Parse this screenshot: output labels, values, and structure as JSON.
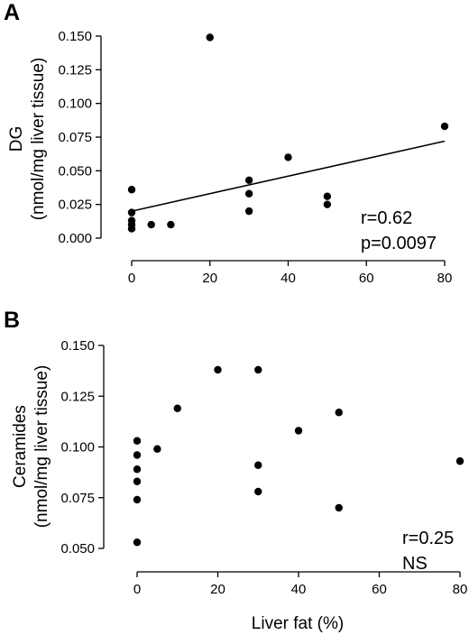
{
  "chart_data": [
    {
      "type": "scatter",
      "panel": "A",
      "title": "",
      "ylabel": "DG",
      "ylabel_line2": "(nmol/mg liver tissue)",
      "xlabel": "",
      "xlim": [
        0,
        80
      ],
      "ylim": [
        0,
        0.15
      ],
      "xticks": [
        0,
        20,
        40,
        60,
        80
      ],
      "xtick_labels": [
        "0",
        "20",
        "40",
        "60",
        "80"
      ],
      "yticks": [
        0,
        0.025,
        0.05,
        0.075,
        0.1,
        0.125,
        0.15
      ],
      "ytick_labels": [
        "0.000",
        "0.025",
        "0.050",
        "0.075",
        "0.100",
        "0.125",
        "0.150"
      ],
      "points": [
        {
          "x": 0,
          "y": 0.036
        },
        {
          "x": 0,
          "y": 0.019
        },
        {
          "x": 0,
          "y": 0.013
        },
        {
          "x": 0,
          "y": 0.01
        },
        {
          "x": 0,
          "y": 0.007
        },
        {
          "x": 5,
          "y": 0.01
        },
        {
          "x": 10,
          "y": 0.01
        },
        {
          "x": 20,
          "y": 0.149
        },
        {
          "x": 30,
          "y": 0.043
        },
        {
          "x": 30,
          "y": 0.033
        },
        {
          "x": 30,
          "y": 0.02
        },
        {
          "x": 40,
          "y": 0.06
        },
        {
          "x": 50,
          "y": 0.031
        },
        {
          "x": 50,
          "y": 0.025
        },
        {
          "x": 80,
          "y": 0.083
        }
      ],
      "fit_line": {
        "x": [
          0,
          80
        ],
        "y": [
          0.02,
          0.072
        ]
      },
      "annotations": [
        "r=0.62",
        "p=0.0097"
      ]
    },
    {
      "type": "scatter",
      "panel": "B",
      "title": "",
      "ylabel": "Ceramides",
      "ylabel_line2": "(nmol/mg liver tissue)",
      "xlabel": "Liver fat (%)",
      "xlim": [
        0,
        80
      ],
      "ylim": [
        0.05,
        0.15
      ],
      "xticks": [
        0,
        20,
        40,
        60,
        80
      ],
      "xtick_labels": [
        "0",
        "20",
        "40",
        "60",
        "80"
      ],
      "yticks": [
        0.05,
        0.075,
        0.1,
        0.125,
        0.15
      ],
      "ytick_labels": [
        "0.050",
        "0.075",
        "0.100",
        "0.125",
        "0.150"
      ],
      "points": [
        {
          "x": 0,
          "y": 0.103
        },
        {
          "x": 0,
          "y": 0.096
        },
        {
          "x": 0,
          "y": 0.089
        },
        {
          "x": 0,
          "y": 0.083
        },
        {
          "x": 0,
          "y": 0.074
        },
        {
          "x": 0,
          "y": 0.053
        },
        {
          "x": 5,
          "y": 0.099
        },
        {
          "x": 10,
          "y": 0.119
        },
        {
          "x": 20,
          "y": 0.138
        },
        {
          "x": 30,
          "y": 0.138
        },
        {
          "x": 30,
          "y": 0.091
        },
        {
          "x": 30,
          "y": 0.078
        },
        {
          "x": 40,
          "y": 0.108
        },
        {
          "x": 50,
          "y": 0.117
        },
        {
          "x": 50,
          "y": 0.07
        },
        {
          "x": 80,
          "y": 0.093
        }
      ],
      "annotations": [
        "r=0.25",
        "NS"
      ]
    }
  ]
}
